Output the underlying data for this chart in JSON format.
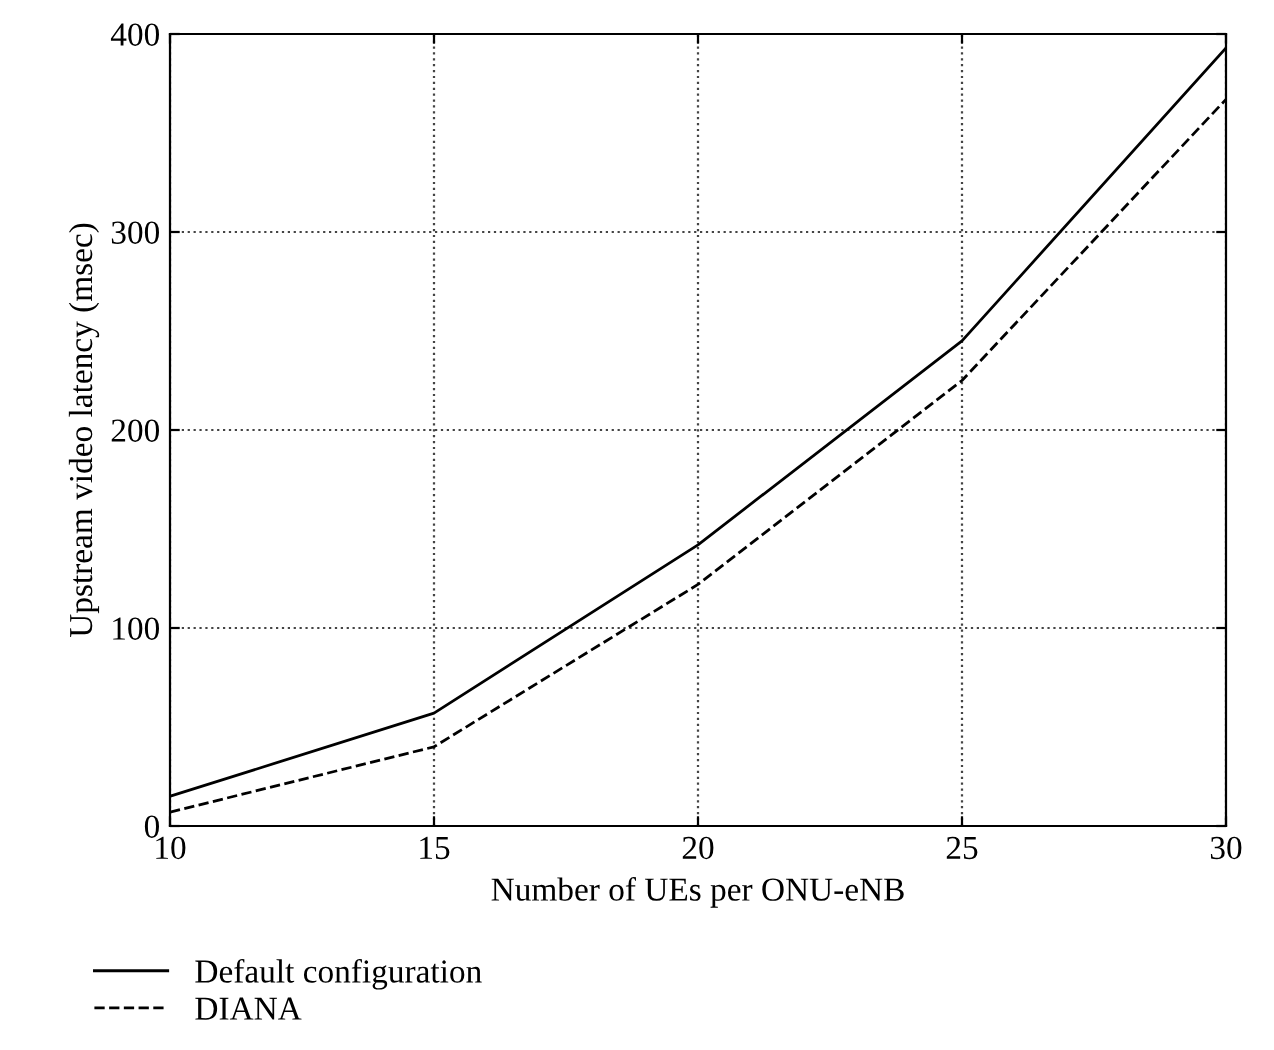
{
  "chart_data": {
    "type": "line",
    "xlabel": "Number of UEs per ONU-eNB",
    "ylabel": "Upstream video latency (msec)",
    "x": [
      10,
      15,
      20,
      25,
      30
    ],
    "series": [
      {
        "name": "Default configuration",
        "color": "#000000",
        "values": [
          15,
          57,
          142,
          245,
          393
        ],
        "line_style": "solid"
      },
      {
        "name": "DIANA",
        "color": "#000000",
        "values": [
          7,
          40,
          122,
          225,
          367
        ],
        "line_style": "dashed"
      }
    ],
    "xlim": [
      10,
      30
    ],
    "xticks": [
      10,
      15,
      20,
      25,
      30
    ],
    "ylim": [
      0,
      400
    ],
    "yticks": [
      0,
      100,
      200,
      300,
      400
    ],
    "grid": true,
    "legend": "bottom",
    "marker": "none"
  }
}
